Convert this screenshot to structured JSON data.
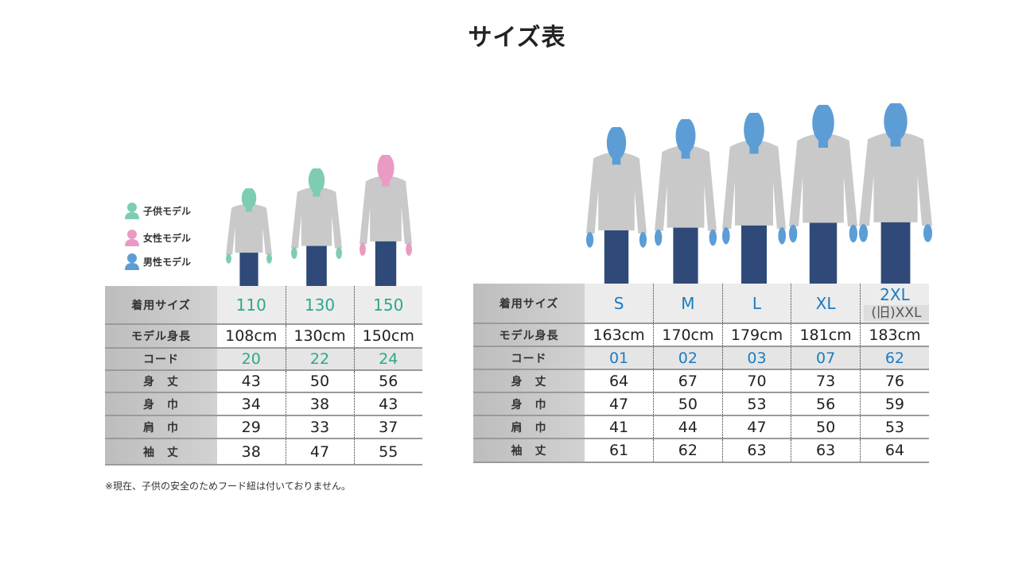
{
  "title": "サイズ表",
  "legend": [
    {
      "label": "子供モデル",
      "color": "#7ecdb3"
    },
    {
      "label": "女性モデル",
      "color": "#e99bc3"
    },
    {
      "label": "男性モデル",
      "color": "#5d9dd6"
    }
  ],
  "colors": {
    "kids_accent": "#2ba88d",
    "adult_accent": "#1b7cc0",
    "hoodie": "#c9c9c9",
    "jeans": "#2f4a78"
  },
  "kids_table": {
    "row_labels": [
      "着用サイズ",
      "モデル身長",
      "コード",
      "身　丈",
      "身　巾",
      "肩　巾",
      "袖　丈"
    ],
    "columns": [
      {
        "size": "110",
        "height": "108cm",
        "code": "20",
        "body_length": "43",
        "body_width": "34",
        "shoulder": "29",
        "sleeve": "38",
        "model": "子供モデル"
      },
      {
        "size": "130",
        "height": "130cm",
        "code": "22",
        "body_length": "50",
        "body_width": "38",
        "shoulder": "33",
        "sleeve": "47",
        "model": "子供モデル"
      },
      {
        "size": "150",
        "height": "150cm",
        "code": "24",
        "body_length": "56",
        "body_width": "43",
        "shoulder": "37",
        "sleeve": "55",
        "model": "女性モデル"
      }
    ]
  },
  "adult_table": {
    "row_labels": [
      "着用サイズ",
      "モデル身長",
      "コード",
      "身　丈",
      "身　巾",
      "肩　巾",
      "袖　丈"
    ],
    "columns": [
      {
        "size": "S",
        "height": "163cm",
        "code": "01",
        "body_length": "64",
        "body_width": "47",
        "shoulder": "41",
        "sleeve": "61",
        "model": "男性モデル"
      },
      {
        "size": "M",
        "height": "170cm",
        "code": "02",
        "body_length": "67",
        "body_width": "50",
        "shoulder": "44",
        "sleeve": "62",
        "model": "男性モデル"
      },
      {
        "size": "L",
        "height": "179cm",
        "code": "03",
        "body_length": "70",
        "body_width": "53",
        "shoulder": "47",
        "sleeve": "63",
        "model": "男性モデル"
      },
      {
        "size": "XL",
        "height": "181cm",
        "code": "07",
        "body_length": "73",
        "body_width": "56",
        "shoulder": "50",
        "sleeve": "63",
        "model": "男性モデル"
      },
      {
        "size": "2XL",
        "size_note": "(旧)XXL",
        "height": "183cm",
        "code": "62",
        "body_length": "76",
        "body_width": "59",
        "shoulder": "53",
        "sleeve": "64",
        "model": "男性モデル"
      }
    ]
  },
  "note": "※現在、子供の安全のためフード紐は付いておりません。"
}
